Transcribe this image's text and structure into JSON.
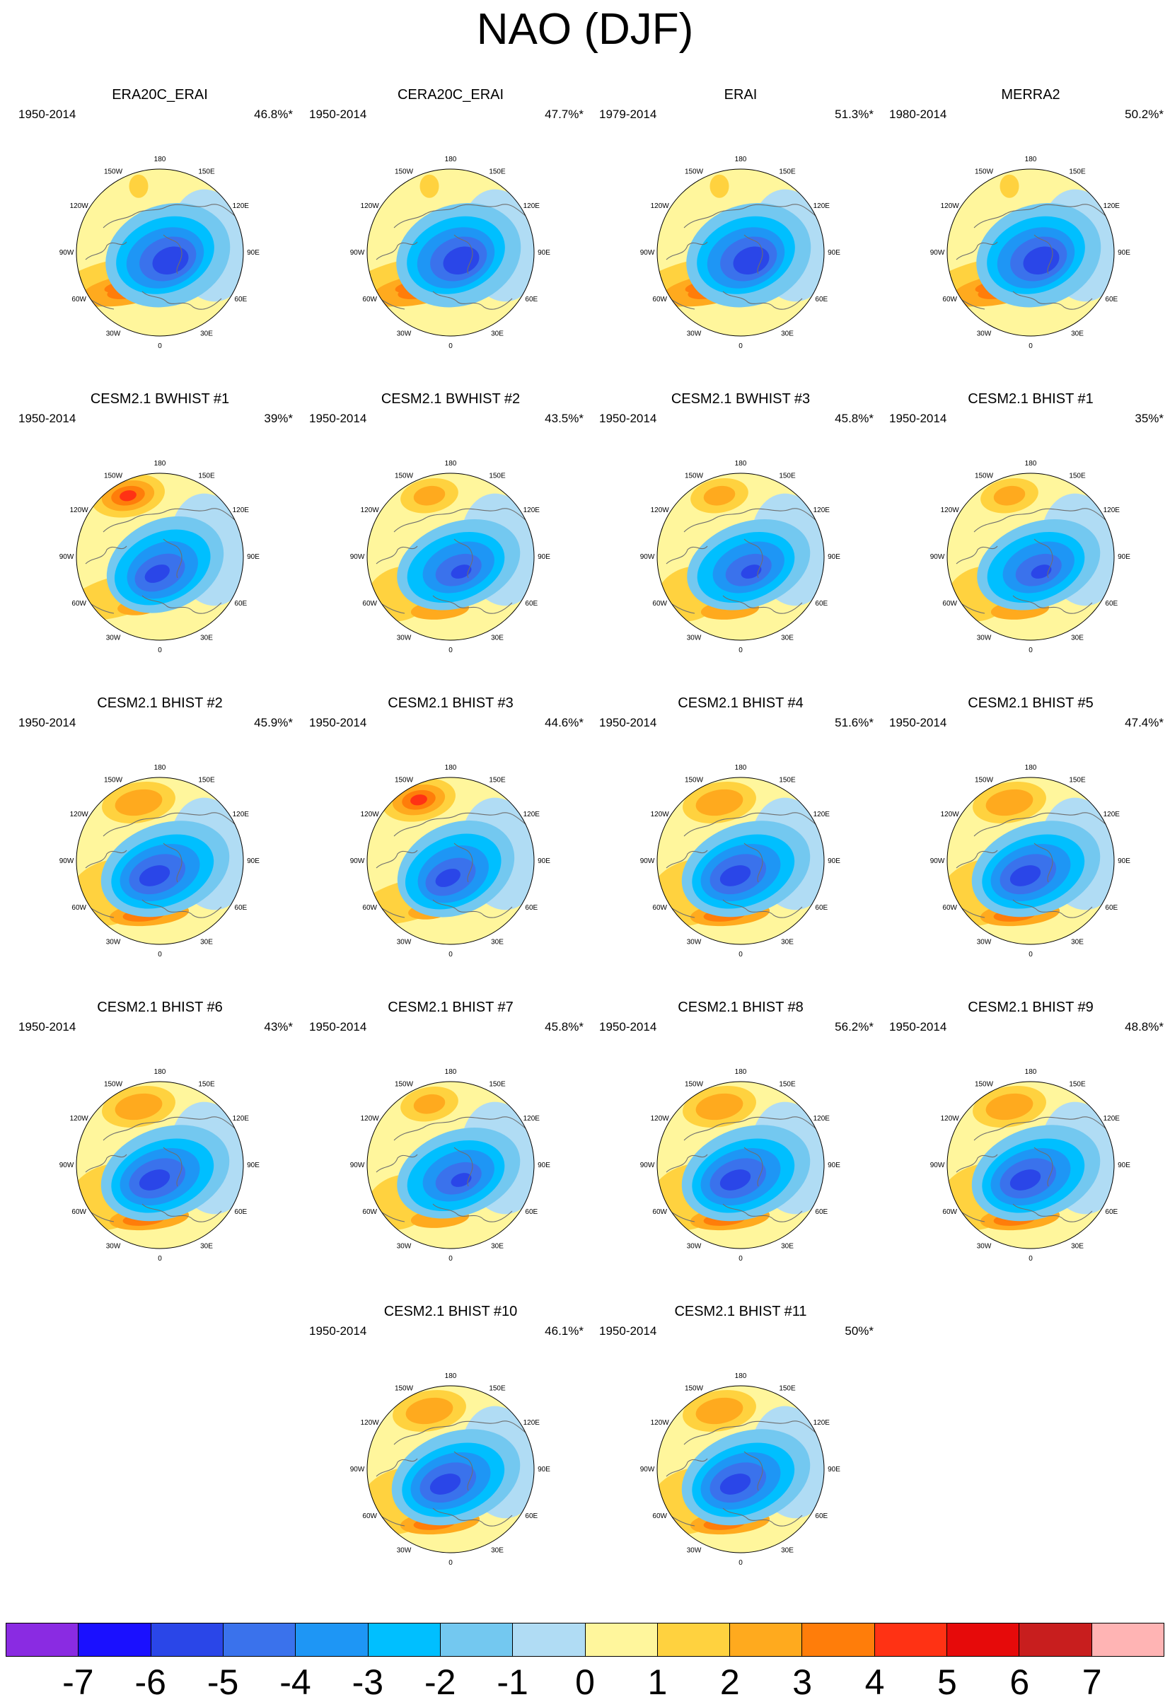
{
  "title": "NAO (DJF)",
  "longitude_labels": [
    "180",
    "150E",
    "120E",
    "90E",
    "60E",
    "30E",
    "0",
    "30W",
    "60W",
    "90W",
    "120W",
    "150W"
  ],
  "panels": [
    {
      "title": "ERA20C_ERAI",
      "years": "1950-2014",
      "variance": "46.8%*",
      "style": "obs"
    },
    {
      "title": "CERA20C_ERAI",
      "years": "1950-2014",
      "variance": "47.7%*",
      "style": "obs"
    },
    {
      "title": "ERAI",
      "years": "1979-2014",
      "variance": "51.3%*",
      "style": "obs"
    },
    {
      "title": "MERRA2",
      "years": "1980-2014",
      "variance": "50.2%*",
      "style": "obs"
    },
    {
      "title": "CESM2.1 BWHIST #1",
      "years": "1950-2014",
      "variance": "39%*",
      "style": "pac_strong"
    },
    {
      "title": "CESM2.1 BWHIST #2",
      "years": "1950-2014",
      "variance": "43.5%*",
      "style": "weak"
    },
    {
      "title": "CESM2.1 BWHIST #3",
      "years": "1950-2014",
      "variance": "45.8%*",
      "style": "weak"
    },
    {
      "title": "CESM2.1 BHIST #1",
      "years": "1950-2014",
      "variance": "35%*",
      "style": "weak"
    },
    {
      "title": "CESM2.1 BHIST #2",
      "years": "1950-2014",
      "variance": "45.9%*",
      "style": "model"
    },
    {
      "title": "CESM2.1 BHIST #3",
      "years": "1950-2014",
      "variance": "44.6%*",
      "style": "pac_strong"
    },
    {
      "title": "CESM2.1 BHIST #4",
      "years": "1950-2014",
      "variance": "51.6%*",
      "style": "model"
    },
    {
      "title": "CESM2.1 BHIST #5",
      "years": "1950-2014",
      "variance": "47.4%*",
      "style": "model"
    },
    {
      "title": "CESM2.1 BHIST #6",
      "years": "1950-2014",
      "variance": "43%*",
      "style": "model"
    },
    {
      "title": "CESM2.1 BHIST #7",
      "years": "1950-2014",
      "variance": "45.8%*",
      "style": "weak"
    },
    {
      "title": "CESM2.1 BHIST #8",
      "years": "1950-2014",
      "variance": "56.2%*",
      "style": "model"
    },
    {
      "title": "CESM2.1 BHIST #9",
      "years": "1950-2014",
      "variance": "48.8%*",
      "style": "model"
    },
    {
      "title": "CESM2.1 BHIST #10",
      "years": "1950-2014",
      "variance": "46.1%*",
      "style": "model"
    },
    {
      "title": "CESM2.1 BHIST #11",
      "years": "1950-2014",
      "variance": "50%*",
      "style": "model"
    }
  ],
  "colorbar": {
    "labels": [
      "-7",
      "-6",
      "-5",
      "-4",
      "-3",
      "-2",
      "-1",
      "0",
      "1",
      "2",
      "3",
      "4",
      "5",
      "6",
      "7"
    ],
    "colors": [
      "#8a2be2",
      "#1a10ff",
      "#2a46e8",
      "#3a72ec",
      "#1e96f5",
      "#00bfff",
      "#73c8f0",
      "#b0dcf4",
      "#fff69c",
      "#ffd23f",
      "#ffaa1e",
      "#ff7d0a",
      "#ff3214",
      "#e60a0a",
      "#c81e1e",
      "#ffb4b4"
    ],
    "levels": [
      -7,
      -6,
      -5,
      -4,
      -3,
      -2,
      -1,
      0,
      1,
      2,
      3,
      4,
      5,
      6,
      7
    ]
  }
}
